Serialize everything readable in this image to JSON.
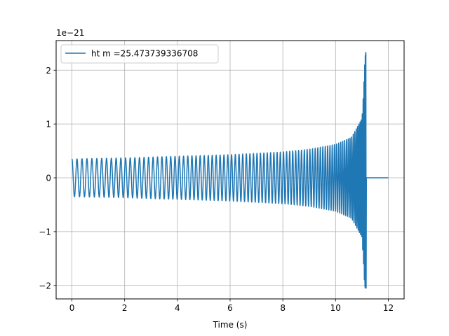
{
  "chart_data": {
    "type": "line",
    "title": "",
    "xlabel": "Time (s)",
    "ylabel": "",
    "offset_text": "1e−21",
    "xlim": [
      -0.6,
      12.6
    ],
    "ylim": [
      -2.25,
      2.55
    ],
    "x_ticks": [
      {
        "value": 0,
        "label": "0"
      },
      {
        "value": 2,
        "label": "2"
      },
      {
        "value": 4,
        "label": "4"
      },
      {
        "value": 6,
        "label": "6"
      },
      {
        "value": 8,
        "label": "8"
      },
      {
        "value": 10,
        "label": "10"
      },
      {
        "value": 12,
        "label": "12"
      }
    ],
    "y_ticks": [
      {
        "value": -2,
        "label": "−2"
      },
      {
        "value": -1,
        "label": "−1"
      },
      {
        "value": 0,
        "label": "0"
      },
      {
        "value": 1,
        "label": "1"
      },
      {
        "value": 2,
        "label": "2"
      }
    ],
    "grid": true,
    "legend_position": "top-left",
    "series": [
      {
        "name": "ht m =25.473739336708",
        "color": "#1f77b4",
        "signal": "chirp",
        "start_time": 0.0,
        "merger_time": 11.15,
        "end_time": 12.0,
        "start_amplitude": 0.35,
        "peak_max": 2.33,
        "peak_min": -2.05,
        "envelope_samples": [
          {
            "x": 0,
            "amp": 0.35
          },
          {
            "x": 2,
            "amp": 0.37
          },
          {
            "x": 4,
            "amp": 0.4
          },
          {
            "x": 6,
            "amp": 0.43
          },
          {
            "x": 8,
            "amp": 0.48
          },
          {
            "x": 9,
            "amp": 0.53
          },
          {
            "x": 10,
            "amp": 0.62
          },
          {
            "x": 10.6,
            "amp": 0.75
          },
          {
            "x": 11.0,
            "amp": 1.1
          },
          {
            "x": 11.15,
            "amp": 2.3
          }
        ],
        "post_merger_value": 0
      }
    ]
  }
}
